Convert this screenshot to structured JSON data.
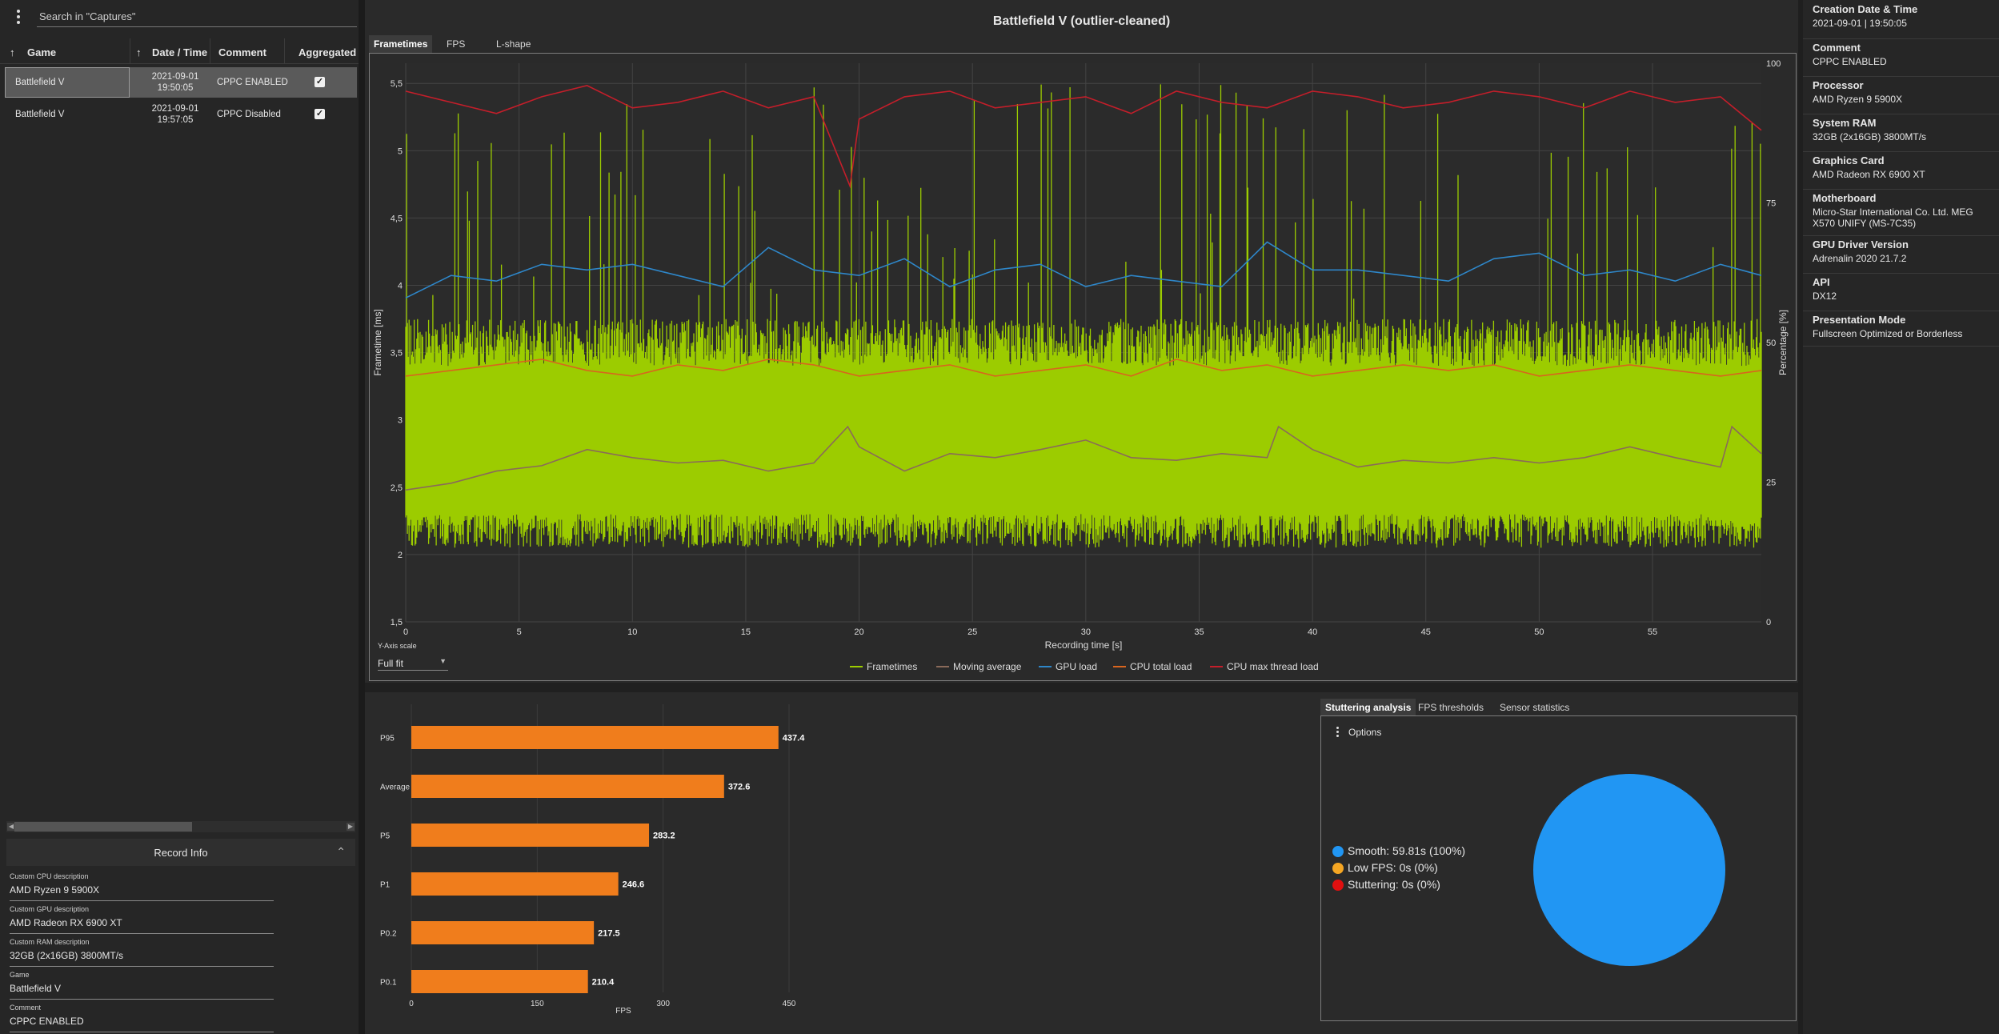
{
  "sidebar": {
    "search_placeholder": "Search in \"Captures\"",
    "columns": {
      "game": "Game",
      "datetime": "Date / Time",
      "comment": "Comment",
      "aggregated": "Aggregated"
    },
    "rows": [
      {
        "game": "Battlefield V",
        "date": "2021-09-01",
        "time": "19:50:05",
        "comment": "CPPC ENABLED",
        "aggregated": true
      },
      {
        "game": "Battlefield V",
        "date": "2021-09-01",
        "time": "19:57:05",
        "comment": "CPPC Disabled",
        "aggregated": true
      }
    ],
    "record_info": {
      "title": "Record Info",
      "fields": [
        {
          "label": "Custom CPU description",
          "value": "AMD Ryzen 9 5900X"
        },
        {
          "label": "Custom GPU description",
          "value": "AMD Radeon RX 6900 XT"
        },
        {
          "label": "Custom RAM description",
          "value": "32GB (2x16GB) 3800MT/s"
        },
        {
          "label": "Game",
          "value": "Battlefield V"
        },
        {
          "label": "Comment",
          "value": "CPPC ENABLED"
        }
      ]
    }
  },
  "main": {
    "title": "Battlefield V (outlier-cleaned)",
    "tabs": [
      "Frametimes",
      "FPS",
      "L-shape"
    ],
    "active_tab": "Frametimes",
    "y_axis_scale_label": "Y-Axis scale",
    "y_axis_scale_value": "Full fit",
    "bottom_tabs": [
      "Stuttering analysis",
      "FPS thresholds",
      "Sensor statistics"
    ],
    "options_label": "Options"
  },
  "chart_data": [
    {
      "type": "line",
      "title": "Battlefield V (outlier-cleaned)",
      "xlabel": "Recording time [s]",
      "ylabel": "Frametime [ms]",
      "y2label": "Percentage [%]",
      "xlim": [
        0,
        59.8
      ],
      "ylim": [
        1.5,
        5.65
      ],
      "y2lim": [
        0,
        100
      ],
      "x_ticks": [
        "0",
        "5",
        "10",
        "15",
        "20",
        "25",
        "30",
        "35",
        "40",
        "45",
        "50",
        "55"
      ],
      "y_ticks": [
        "1,5",
        "2",
        "2,5",
        "3",
        "3,5",
        "4",
        "4,5",
        "5",
        "5,5"
      ],
      "y2_ticks": [
        "0",
        "25",
        "50",
        "75",
        "100"
      ],
      "grid": true,
      "legend": [
        "Frametimes",
        "Moving average",
        "GPU load",
        "CPU total load",
        "CPU max thread load"
      ],
      "legend_position": "bottom",
      "colors": {
        "frametimes": "#9ccc00",
        "moving_average": "#8a6a5a",
        "gpu_load": "#2e86c8",
        "cpu_total_load": "#d9651e",
        "cpu_max_thread_load": "#c41e2a"
      },
      "series": [
        {
          "name": "Moving average",
          "axis": "y",
          "x": [
            0,
            2,
            4,
            6,
            8,
            10,
            12,
            14,
            16,
            18,
            19.5,
            20,
            22,
            24,
            26,
            28,
            30,
            32,
            34,
            36,
            38,
            38.5,
            40,
            42,
            44,
            46,
            48,
            50,
            52,
            54,
            56,
            58,
            58.5,
            59.8
          ],
          "values": [
            2.48,
            2.53,
            2.62,
            2.66,
            2.78,
            2.72,
            2.68,
            2.7,
            2.62,
            2.68,
            2.95,
            2.8,
            2.62,
            2.75,
            2.72,
            2.78,
            2.85,
            2.72,
            2.7,
            2.75,
            2.72,
            2.95,
            2.78,
            2.65,
            2.7,
            2.68,
            2.72,
            2.68,
            2.72,
            2.8,
            2.72,
            2.65,
            2.95,
            2.75
          ]
        },
        {
          "name": "GPU load",
          "axis": "y2",
          "x": [
            0,
            2,
            4,
            6,
            8,
            10,
            12,
            14,
            16,
            18,
            20,
            22,
            24,
            26,
            28,
            30,
            32,
            34,
            36,
            38,
            40,
            42,
            44,
            46,
            48,
            50,
            52,
            54,
            56,
            58,
            59.8
          ],
          "values": [
            58,
            62,
            61,
            64,
            63,
            64,
            62,
            60,
            67,
            63,
            62,
            65,
            60,
            63,
            64,
            60,
            62,
            61,
            60,
            68,
            63,
            63,
            62,
            61,
            65,
            66,
            62,
            63,
            61,
            64,
            62
          ]
        },
        {
          "name": "CPU total load",
          "axis": "y2",
          "x": [
            0,
            2,
            4,
            6,
            8,
            10,
            12,
            14,
            16,
            18,
            20,
            22,
            24,
            26,
            28,
            30,
            32,
            34,
            36,
            38,
            40,
            42,
            44,
            46,
            48,
            50,
            52,
            54,
            56,
            58,
            59.8
          ],
          "values": [
            44,
            45,
            46,
            47,
            45,
            44,
            46,
            45,
            47,
            46,
            44,
            45,
            46,
            44,
            45,
            46,
            44,
            47,
            45,
            46,
            44,
            45,
            46,
            45,
            46,
            44,
            45,
            46,
            45,
            44,
            45
          ]
        },
        {
          "name": "CPU max thread load",
          "axis": "y2",
          "x": [
            0,
            2,
            4,
            6,
            8,
            10,
            12,
            14,
            16,
            18,
            19.6,
            20,
            22,
            24,
            26,
            28,
            30,
            32,
            34,
            36,
            38,
            40,
            42,
            44,
            46,
            48,
            50,
            52,
            54,
            56,
            58,
            59.8
          ],
          "values": [
            95,
            93,
            91,
            94,
            96,
            92,
            93,
            95,
            92,
            94,
            78,
            90,
            94,
            95,
            92,
            93,
            94,
            91,
            95,
            93,
            92,
            95,
            94,
            92,
            93,
            95,
            94,
            92,
            95,
            93,
            94,
            88
          ]
        }
      ],
      "frametimes_band": {
        "low": 2.3,
        "high": 3.4,
        "spike_max": 5.5
      }
    },
    {
      "type": "bar",
      "orientation": "horizontal",
      "xlabel": "FPS",
      "categories": [
        "P95",
        "Average",
        "P5",
        "P1",
        "P0.2",
        "P0.1"
      ],
      "values": [
        437.4,
        372.6,
        283.2,
        246.6,
        217.5,
        210.4
      ],
      "value_labels": [
        "437.4",
        "372.6",
        "283.2",
        "246.6",
        "217.5",
        "210.4"
      ],
      "xlim": [
        0,
        450
      ],
      "x_ticks": [
        "0",
        "150",
        "300",
        "450"
      ],
      "color": "#f07d1c"
    },
    {
      "type": "pie",
      "categories": [
        "Smooth",
        "Low FPS",
        "Stuttering"
      ],
      "values": [
        59.81,
        0,
        0
      ],
      "labels": [
        "Smooth:  59.81s (100%)",
        "Low FPS:  0s (0%)",
        "Stuttering:  0s (0%)"
      ],
      "colors": [
        "#2196f3",
        "#f5a623",
        "#e01010"
      ]
    }
  ],
  "info_panel": [
    {
      "key": "Creation Date & Time",
      "value": "2021-09-01  |  19:50:05"
    },
    {
      "key": "Comment",
      "value": "CPPC ENABLED"
    },
    {
      "key": "Processor",
      "value": "AMD Ryzen 9 5900X"
    },
    {
      "key": "System RAM",
      "value": "32GB (2x16GB) 3800MT/s"
    },
    {
      "key": "Graphics Card",
      "value": "AMD Radeon RX 6900 XT"
    },
    {
      "key": "Motherboard",
      "value": "Micro-Star International Co. Ltd. MEG X570 UNIFY (MS-7C35)"
    },
    {
      "key": "GPU Driver Version",
      "value": "Adrenalin 2020 21.7.2"
    },
    {
      "key": "API",
      "value": "DX12"
    },
    {
      "key": "Presentation Mode",
      "value": "Fullscreen Optimized or Borderless"
    }
  ]
}
